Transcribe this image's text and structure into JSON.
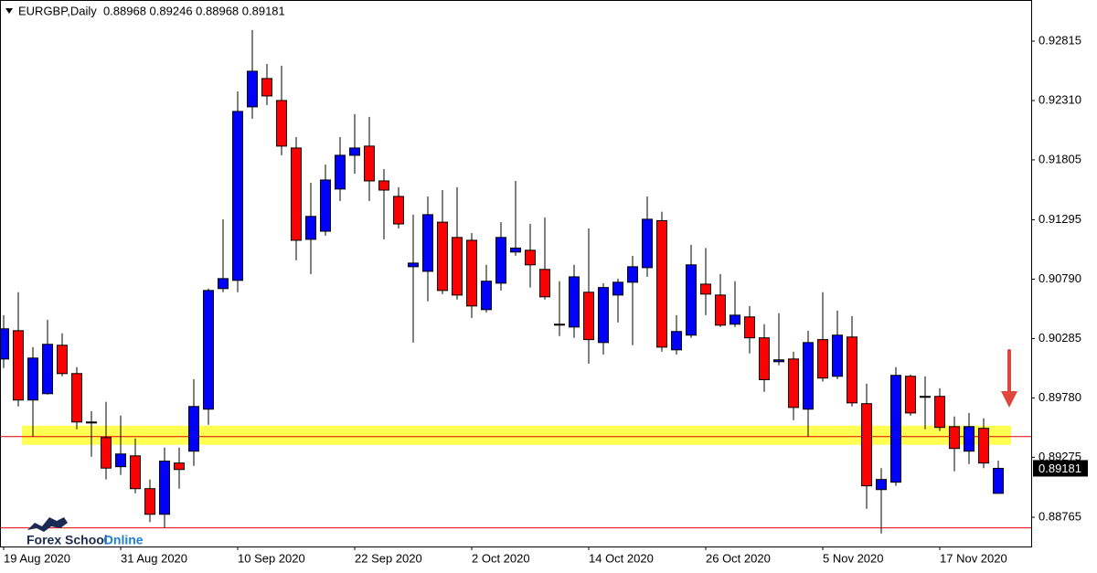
{
  "chart_data": {
    "type": "candlestick",
    "title": "EURGBP,Daily  0.88968 0.89246 0.88968 0.89181",
    "categories": [
      "19 Aug 2020",
      null,
      null,
      null,
      null,
      null,
      null,
      null,
      "31 Aug 2020",
      null,
      null,
      null,
      null,
      null,
      null,
      null,
      "10 Sep 2020",
      null,
      null,
      null,
      null,
      null,
      null,
      null,
      "22 Sep 2020",
      null,
      null,
      null,
      null,
      null,
      null,
      null,
      "2 Oct 2020",
      null,
      null,
      null,
      null,
      null,
      null,
      null,
      "14 Oct 2020",
      null,
      null,
      null,
      null,
      null,
      null,
      null,
      "26 Oct 2020",
      null,
      null,
      null,
      null,
      null,
      null,
      null,
      "5 Nov 2020",
      null,
      null,
      null,
      null,
      null,
      null,
      null,
      "17 Nov 2020",
      null,
      null,
      null,
      null
    ],
    "open": [
      0.90111,
      0.90352,
      0.89762,
      0.89816,
      0.90228,
      0.89987,
      0.89567,
      0.89443,
      0.89195,
      0.89287,
      0.89008,
      0.8879,
      0.89226,
      0.89327,
      0.89684,
      0.9071,
      0.9078,
      0.92256,
      0.92497,
      0.9231,
      0.91906,
      0.91129,
      0.91198,
      0.91557,
      0.91844,
      0.91922,
      0.91626,
      0.91494,
      0.90896,
      0.90857,
      0.91275,
      0.91145,
      0.91121,
      0.90531,
      0.90756,
      0.91021,
      0.91036,
      0.90873,
      0.90407,
      0.90383,
      0.90679,
      0.90251,
      0.90655,
      0.90764,
      0.90888,
      0.91288,
      0.90189,
      0.90314,
      0.90748,
      0.90655,
      0.90407,
      0.90469,
      0.90291,
      0.90088,
      0.90111,
      0.89684,
      0.90276,
      0.89964,
      0.90298,
      0.89731,
      0.89,
      0.89063,
      0.89964,
      0.89793,
      0.89793,
      0.89536,
      0.89327,
      0.89521,
      0.88968
    ],
    "high": [
      0.90484,
      0.90679,
      0.90212,
      0.90445,
      0.90329,
      0.90042,
      0.89668,
      0.89747,
      0.8963,
      0.89435,
      0.89086,
      0.89358,
      0.89358,
      0.8994,
      0.9071,
      0.913,
      0.92388,
      0.92909,
      0.92621,
      0.92606,
      0.91999,
      0.91611,
      0.91765,
      0.91999,
      0.92194,
      0.92171,
      0.91727,
      0.91572,
      0.91339,
      0.91494,
      0.91548,
      0.91572,
      0.91183,
      0.90912,
      0.91276,
      0.91626,
      0.9126,
      0.91316,
      0.90773,
      0.90912,
      0.91221,
      0.90756,
      0.90795,
      0.90989,
      0.91494,
      0.91364,
      0.90484,
      0.91082,
      0.91055,
      0.90834,
      0.90773,
      0.90562,
      0.90407,
      0.905,
      0.90173,
      0.90352,
      0.90679,
      0.90524,
      0.90476,
      0.89902,
      0.89183,
      0.90042,
      0.89979,
      0.89964,
      0.89862,
      0.89622,
      0.89652,
      0.89606,
      0.89246
    ],
    "low": [
      0.90034,
      0.89707,
      0.89451,
      0.89808,
      0.89964,
      0.89513,
      0.8928,
      0.89086,
      0.89125,
      0.88969,
      0.88724,
      0.88674,
      0.89008,
      0.89202,
      0.89552,
      0.90679,
      0.90679,
      0.92155,
      0.92271,
      0.91844,
      0.9095,
      0.90834,
      0.9116,
      0.91456,
      0.91687,
      0.91456,
      0.91129,
      0.91221,
      0.90251,
      0.90601,
      0.90663,
      0.90617,
      0.90461,
      0.90507,
      0.90694,
      0.90989,
      0.90719,
      0.90617,
      0.90306,
      0.90291,
      0.90072,
      0.9015,
      0.90422,
      0.90228,
      0.9081,
      0.90173,
      0.9015,
      0.90291,
      0.90484,
      0.90383,
      0.90383,
      0.90158,
      0.89832,
      0.90057,
      0.89591,
      0.89451,
      0.89919,
      0.8994,
      0.89707,
      0.88837,
      0.88627,
      0.89032,
      0.8963,
      0.89513,
      0.89498,
      0.89156,
      0.89218,
      0.89183,
      0.88968
    ],
    "close": [
      0.90368,
      0.89762,
      0.90119,
      0.90236,
      0.89987,
      0.89575,
      0.89575,
      0.89183,
      0.89303,
      0.89008,
      0.8879,
      0.89242,
      0.89171,
      0.89707,
      0.90694,
      0.90795,
      0.92217,
      0.92559,
      0.92349,
      0.91922,
      0.91121,
      0.91324,
      0.91634,
      0.91844,
      0.91906,
      0.91626,
      0.91548,
      0.9126,
      0.90927,
      0.91339,
      0.90694,
      0.90655,
      0.90562,
      0.90773,
      0.91145,
      0.91055,
      0.90912,
      0.9064,
      0.90407,
      0.9081,
      0.90276,
      0.90719,
      0.90764,
      0.90896,
      0.913,
      0.90212,
      0.90345,
      0.90912,
      0.90663,
      0.90399,
      0.90484,
      0.90291,
      0.89935,
      0.90104,
      0.89699,
      0.90251,
      0.89949,
      0.90314,
      0.89738,
      0.89032,
      0.89086,
      0.89972,
      0.89652,
      0.89793,
      0.89529,
      0.8935,
      0.89536,
      0.89226,
      0.89181
    ],
    "up_color": "#0000ff",
    "down_color": "#ff0000",
    "ylim": [
      0.88516,
      0.93165
    ],
    "yticks": [
      0.92815,
      {
        "value": 0.9231,
        "label": "0.92310"
      },
      0.91805,
      0.91295,
      {
        "value": 0.9079,
        "label": "0.90790"
      },
      0.90285,
      {
        "value": 0.8978,
        "label": "0.89780"
      },
      0.89275,
      0.88765
    ],
    "hlines": [
      {
        "value": 0.89451,
        "color": "#e00000"
      },
      {
        "value": 0.88674,
        "color": "#e00000"
      }
    ],
    "zone": {
      "from": 0.89381,
      "to": 0.89544,
      "color": "#ffff33"
    }
  },
  "logo": {
    "first": "Forex School",
    "second": "Online"
  }
}
